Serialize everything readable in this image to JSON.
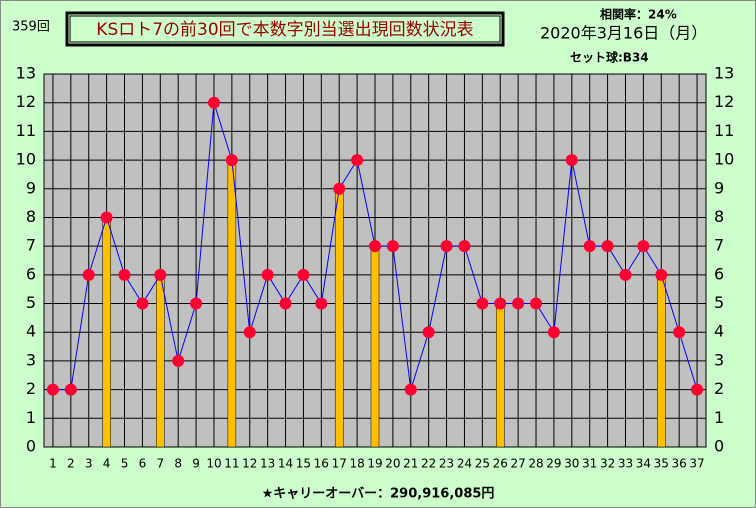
{
  "chart_data": {
    "type": "line",
    "draw_number": "359回",
    "title": "KSロト7の前30回で本数字別当選出現回数状況表",
    "correlation": "相関率：24%",
    "date": "2020年3月16日（月）",
    "set_ball": "セット球:B34",
    "carryover": "★キャリーオーバー：290,916,085円",
    "categories": [
      "1",
      "2",
      "3",
      "4",
      "5",
      "6",
      "7",
      "8",
      "9",
      "10",
      "11",
      "12",
      "13",
      "14",
      "15",
      "16",
      "17",
      "18",
      "19",
      "20",
      "21",
      "22",
      "23",
      "24",
      "25",
      "26",
      "27",
      "28",
      "29",
      "30",
      "31",
      "32",
      "33",
      "34",
      "35",
      "36",
      "37"
    ],
    "series": [
      {
        "type": "line",
        "color": "#ff0033",
        "line_color": "#0000ff",
        "values": [
          2,
          2,
          6,
          8,
          6,
          5,
          6,
          3,
          5,
          12,
          10,
          4,
          6,
          5,
          6,
          5,
          9,
          10,
          7,
          7,
          2,
          4,
          7,
          7,
          5,
          5,
          5,
          5,
          4,
          10,
          7,
          7,
          6,
          7,
          6,
          4,
          2
        ]
      },
      {
        "type": "bar",
        "color": "#ffc000",
        "values": [
          null,
          null,
          null,
          8,
          null,
          null,
          6,
          null,
          null,
          null,
          10,
          null,
          null,
          null,
          null,
          null,
          9,
          null,
          7,
          null,
          null,
          null,
          null,
          null,
          null,
          5,
          null,
          null,
          null,
          null,
          null,
          null,
          null,
          null,
          6,
          null,
          null
        ]
      }
    ],
    "ylim": [
      0,
      13
    ],
    "yticks": [
      0,
      1,
      2,
      3,
      4,
      5,
      6,
      7,
      8,
      9,
      10,
      11,
      12,
      13
    ],
    "grid": true
  }
}
